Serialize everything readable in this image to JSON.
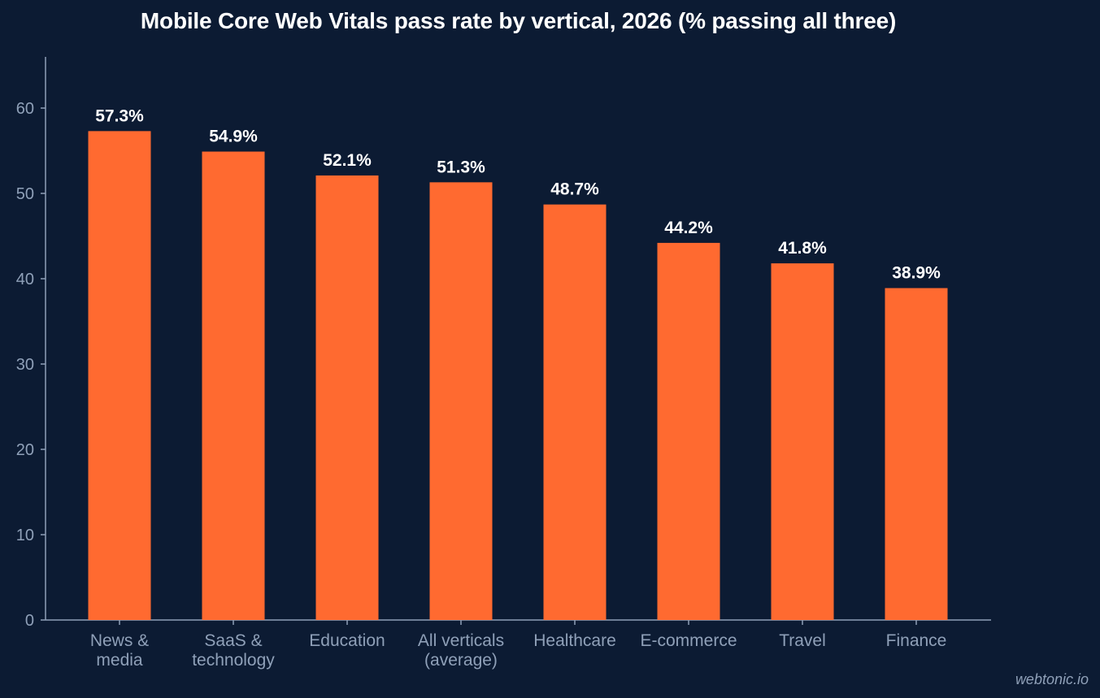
{
  "title": "Mobile Core Web Vitals pass rate by vertical, 2026 (% passing all three)",
  "watermark": "webtonic.io",
  "colors": {
    "background": "#0c1b33",
    "bar": "#ff6a30",
    "axis": "#8fa0b8",
    "text": "#ffffff"
  },
  "chart_data": {
    "type": "bar",
    "title": "Mobile Core Web Vitals pass rate by vertical, 2026 (% passing all three)",
    "categories": [
      [
        "News &",
        "media"
      ],
      [
        "SaaS &",
        "technology"
      ],
      [
        "Education"
      ],
      [
        "All verticals",
        "(average)"
      ],
      [
        "Healthcare"
      ],
      [
        "E-commerce"
      ],
      [
        "Travel"
      ],
      [
        "Finance"
      ]
    ],
    "values": [
      57.3,
      54.9,
      52.1,
      51.3,
      48.7,
      44.2,
      41.8,
      38.9
    ],
    "value_labels": [
      "57.3%",
      "54.9%",
      "52.1%",
      "51.3%",
      "48.7%",
      "44.2%",
      "41.8%",
      "38.9%"
    ],
    "xlabel": "",
    "ylabel": "",
    "ylim": [
      0,
      66
    ],
    "yticks": [
      0,
      10,
      20,
      30,
      40,
      50,
      60
    ],
    "grid": false,
    "legend": "none"
  }
}
